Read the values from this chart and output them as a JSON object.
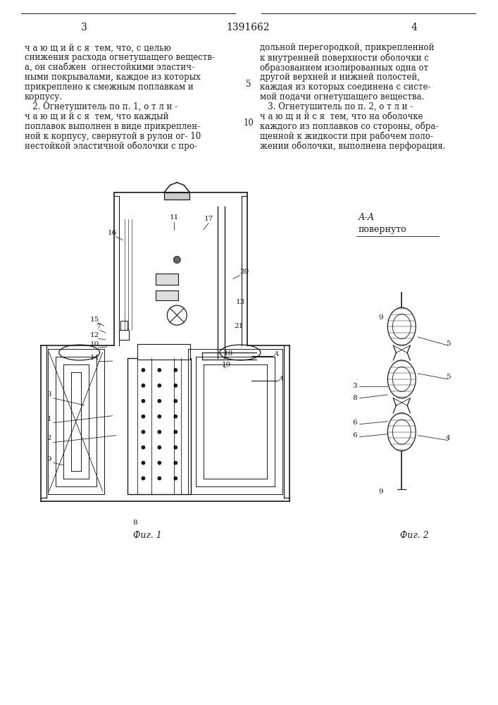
{
  "page_number_left": "3",
  "patent_number": "1391662",
  "page_number_right": "4",
  "text_left": [
    "ч а ю щ и й с я  тем, что, с целью",
    "снижения расхода огнетушащего веществ-",
    "а, он снабжен  огнестойкими эластич-",
    "ными покрывалами, каждое из которых",
    "прикреплено к смежным поплавкам и",
    "корпусу.",
    "   2. Огнетушитель по п. 1, о т л и -",
    "ч а ю щ и й с я  тем, что каждый",
    "поплавок выполнен в виде прикреплен-",
    "ной к корпусу, свернутой в рулон ог- 10",
    "нестойкой эластичной оболочки с про-"
  ],
  "text_right": [
    "дольной перегородкой, прикрепленной",
    "к внутренней поверхности оболочки с",
    "образованием изолированных одна от",
    "другой верхней и нижней полостей,",
    "каждая из которых соединена с систе-",
    "мой подачи огнетушащего вещества.",
    "   3. Огнетушитель по п. 2, о т л и -",
    "ч а ю щ и й с я  тем, что на оболочке",
    "каждого из поплавков со стороны, обра-",
    "щенной к жидкости при рабочем поло-",
    "жении оболочки, выполнена перфорация."
  ],
  "line_number_5": "5",
  "line_number_10": "10",
  "fig1_caption": "Фиг. 1",
  "fig2_caption": "Фиг. 2",
  "fig2_label_line1": "А-А",
  "fig2_label_line2": "повернуто",
  "background_color": "#ffffff",
  "line_color": "#1a1a1a",
  "text_color": "#1a1a1a",
  "font_size_body": 8.5,
  "font_size_label": 7.5,
  "font_size_page": 10
}
